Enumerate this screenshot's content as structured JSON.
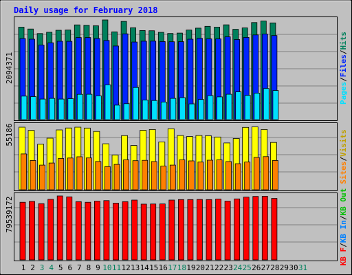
{
  "chart_data": {
    "type": "bar",
    "title": "Daily usage for February 2018",
    "days": [
      1,
      2,
      3,
      4,
      5,
      6,
      7,
      8,
      9,
      10,
      11,
      12,
      13,
      14,
      15,
      16,
      17,
      18,
      19,
      20,
      21,
      22,
      23,
      24,
      25,
      26,
      27,
      28,
      29,
      30,
      31
    ],
    "days_in_month": 28,
    "weekend_days": [
      3,
      4,
      10,
      11,
      17,
      18,
      24,
      25,
      31
    ],
    "colors": {
      "hits": "#00805c",
      "files": "#0024ff",
      "pages": "#00e0ff",
      "visits": "#ffff00",
      "sites": "#ff8000",
      "kbytes": "#ff0000",
      "kb_in": "#0080ff",
      "kb_out": "#00c000",
      "title": "#0000ff",
      "weekday": "#000000",
      "weekend": "#00805c"
    },
    "panels": [
      {
        "id": "usage",
        "max_label": "2094371",
        "ymax": 2094371,
        "legend": [
          "Hits",
          "Files",
          "Pages"
        ],
        "series": [
          {
            "name": "Hits",
            "values": [
              1942000,
              1903000,
              1808000,
              1836000,
              1878000,
              1882000,
              1991000,
              1982000,
              1971000,
              2094371,
              1844000,
              2064000,
              1930000,
              1872000,
              1868000,
              1834000,
              1810000,
              1818000,
              1882000,
              1922000,
              1960000,
              1942000,
              1992000,
              1898000,
              1927000,
              2039000,
              2073000,
              2032000
            ]
          },
          {
            "name": "Files",
            "values": [
              1704000,
              1690000,
              1566000,
              1615000,
              1646000,
              1645000,
              1724000,
              1724000,
              1705000,
              1664000,
              1547000,
              1802000,
              1630000,
              1648000,
              1650000,
              1641000,
              1636000,
              1638000,
              1690000,
              1708000,
              1697000,
              1697000,
              1740000,
              1683000,
              1728000,
              1780000,
              1798000,
              1766000
            ]
          },
          {
            "name": "Pages",
            "values": [
              494000,
              484000,
              432000,
              446000,
              432000,
              440000,
              532000,
              533000,
              500000,
              731000,
              305000,
              335000,
              676000,
              412000,
              402000,
              370000,
              446000,
              462000,
              331000,
              423000,
              505000,
              478000,
              533000,
              583000,
              510000,
              556000,
              654000,
              612000
            ]
          }
        ]
      },
      {
        "id": "visits",
        "max_label": "55186",
        "ymax": 55186,
        "legend": [
          "Visits",
          "Sites"
        ],
        "series": [
          {
            "name": "Visits",
            "values": [
              54000,
              51200,
              39300,
              44500,
              51600,
              53300,
              54000,
              53200,
              50300,
              39700,
              29900,
              46700,
              38200,
              51300,
              52000,
              41300,
              52700,
              46800,
              45900,
              46800,
              46600,
              45500,
              40400,
              44200,
              53800,
              54300,
              52000,
              40800
            ]
          },
          {
            "name": "Sites",
            "values": [
              30900,
              25300,
              21300,
              23100,
              27000,
              27400,
              28500,
              27500,
              24400,
              20000,
              21900,
              25800,
              25100,
              25400,
              24300,
              20400,
              21300,
              25800,
              24900,
              23900,
              25500,
              25800,
              24300,
              22500,
              23900,
              27900,
              28600,
              25300
            ]
          }
        ]
      },
      {
        "id": "kbytes",
        "max_label": "79539172",
        "ymax": 79539172,
        "legend": [
          "KB F",
          "KB In",
          "KB Out"
        ],
        "series": [
          {
            "name": "KB F",
            "values": [
              71680000,
              72750000,
              69950000,
              75320000,
              79539172,
              78460000,
              72400000,
              71680000,
              73080000,
              73730000,
              70600000,
              72400000,
              74450000,
              69370000,
              69520000,
              69600000,
              74450000,
              74980000,
              75030000,
              75140000,
              75030000,
              75730000,
              73080000,
              75830000,
              78090000,
              78900000,
              79100000,
              76450000
            ]
          }
        ]
      }
    ]
  }
}
